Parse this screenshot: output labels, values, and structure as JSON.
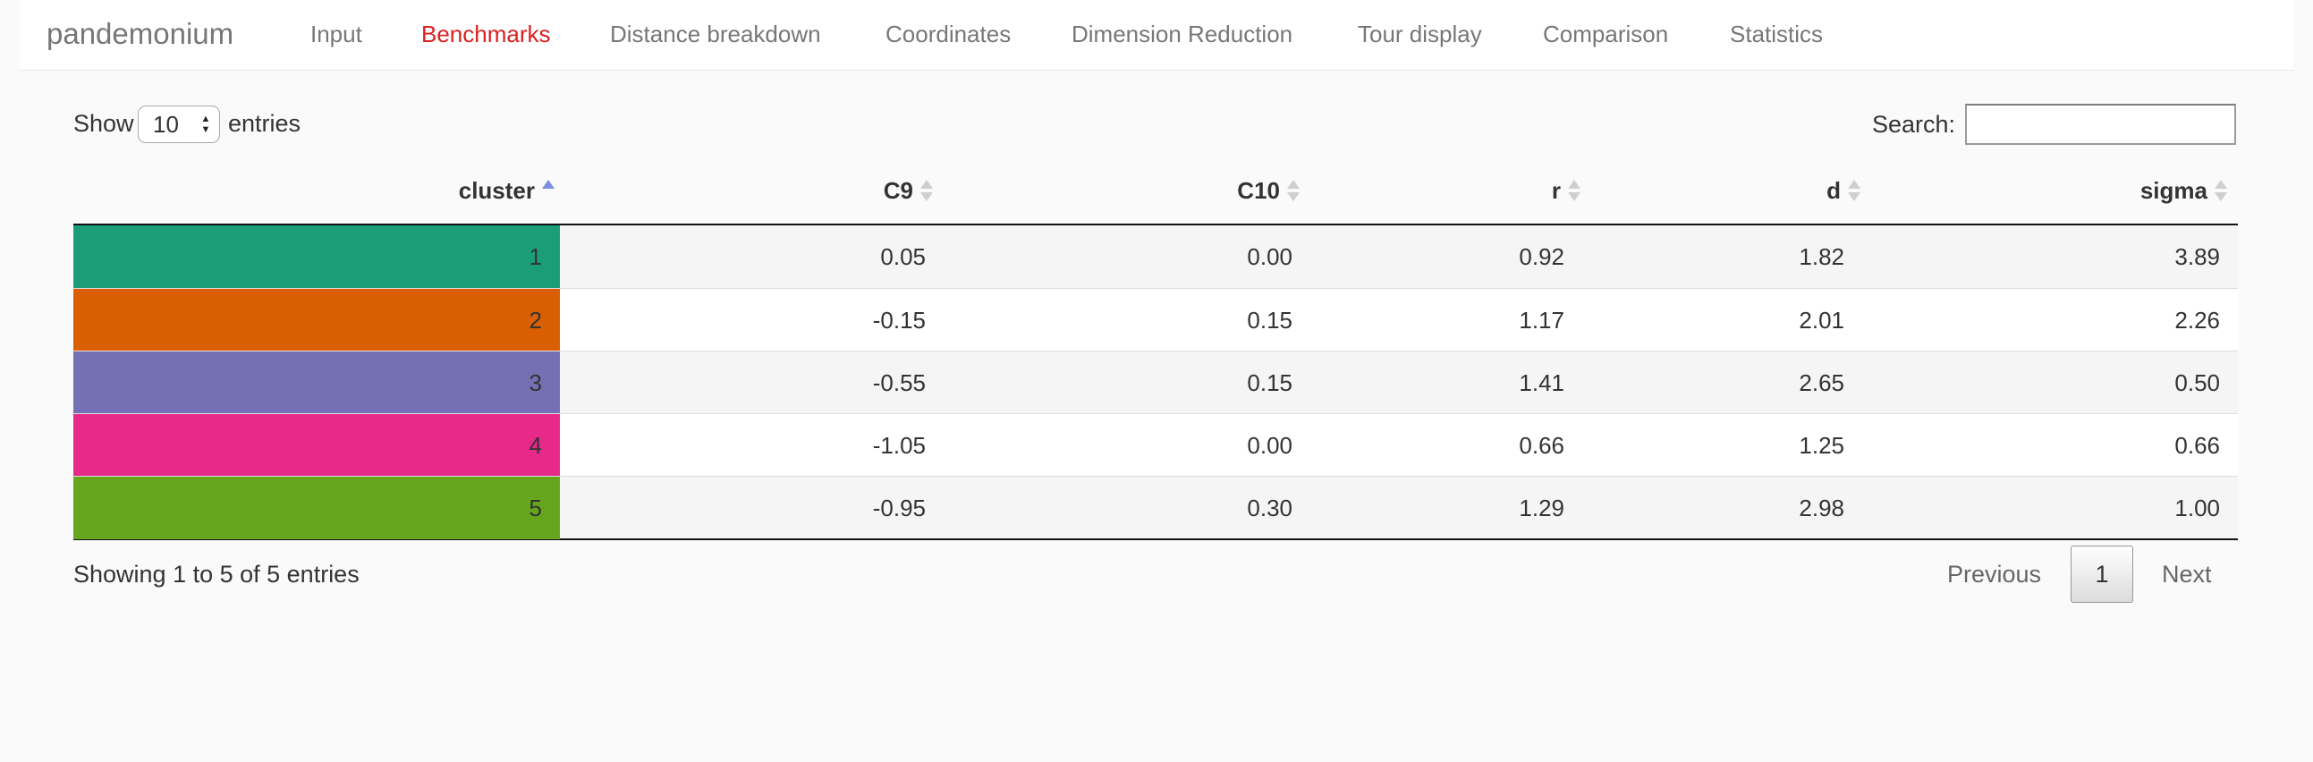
{
  "app": {
    "brand": "pandemonium",
    "tabs": [
      {
        "label": "Input",
        "active": false
      },
      {
        "label": "Benchmarks",
        "active": true
      },
      {
        "label": "Distance breakdown",
        "active": false
      },
      {
        "label": "Coordinates",
        "active": false
      },
      {
        "label": "Dimension Reduction",
        "active": false
      },
      {
        "label": "Tour display",
        "active": false
      },
      {
        "label": "Comparison",
        "active": false
      },
      {
        "label": "Statistics",
        "active": false
      }
    ]
  },
  "controls": {
    "show_label": "Show",
    "page_length": "10",
    "entries_label": "entries",
    "search_label": "Search:",
    "search_value": ""
  },
  "table": {
    "columns": [
      {
        "label": "cluster",
        "sort": "asc"
      },
      {
        "label": "C9",
        "sort": "none"
      },
      {
        "label": "C10",
        "sort": "none"
      },
      {
        "label": "r",
        "sort": "none"
      },
      {
        "label": "d",
        "sort": "none"
      },
      {
        "label": "sigma",
        "sort": "none"
      }
    ],
    "rows": [
      {
        "cluster": "1",
        "color": "#1b9e77",
        "C9": "0.05",
        "C10": "0.00",
        "r": "0.92",
        "d": "1.82",
        "sigma": "3.89"
      },
      {
        "cluster": "2",
        "color": "#d95f02",
        "C9": "-0.15",
        "C10": "0.15",
        "r": "1.17",
        "d": "2.01",
        "sigma": "2.26"
      },
      {
        "cluster": "3",
        "color": "#7570b3",
        "C9": "-0.55",
        "C10": "0.15",
        "r": "1.41",
        "d": "2.65",
        "sigma": "0.50"
      },
      {
        "cluster": "4",
        "color": "#e7298a",
        "C9": "-1.05",
        "C10": "0.00",
        "r": "0.66",
        "d": "1.25",
        "sigma": "0.66"
      },
      {
        "cluster": "5",
        "color": "#66a61e",
        "C9": "-0.95",
        "C10": "0.30",
        "r": "1.29",
        "d": "2.98",
        "sigma": "1.00"
      }
    ]
  },
  "footer": {
    "info": "Showing 1 to 5 of 5 entries",
    "previous_label": "Previous",
    "current_page": "1",
    "next_label": "Next"
  }
}
